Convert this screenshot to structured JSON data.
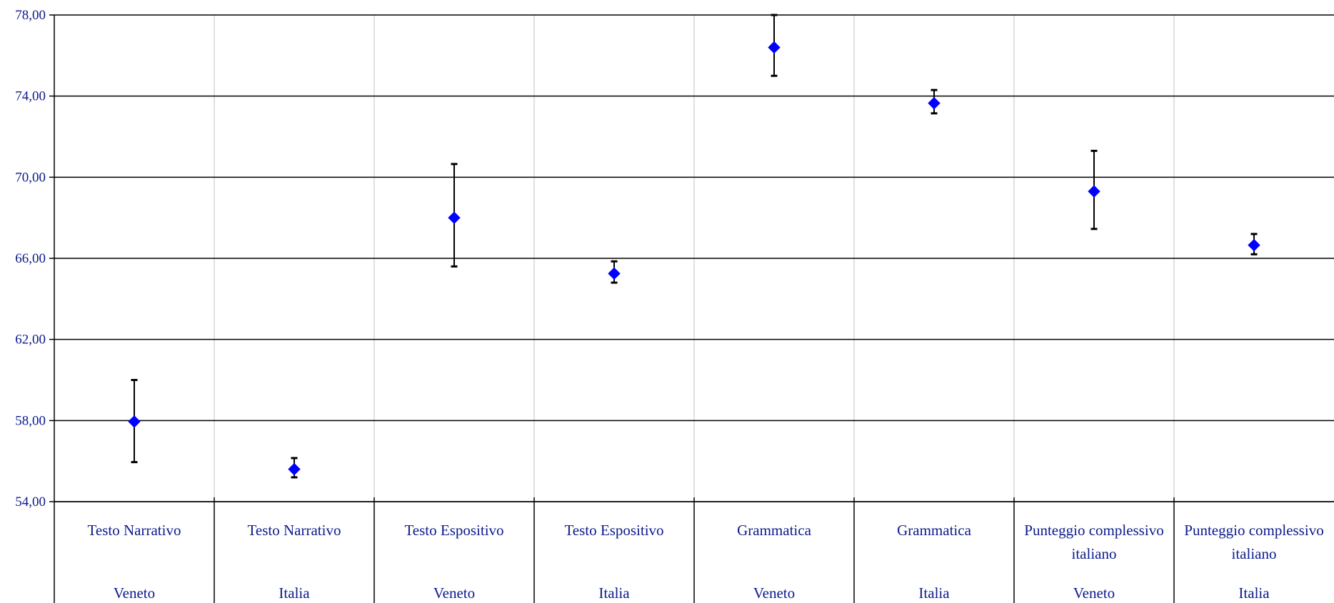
{
  "chart_data": {
    "type": "scatter",
    "title": "",
    "xlabel": "",
    "ylabel": "",
    "ylim": [
      54,
      78
    ],
    "yticks": [
      "54,00",
      "58,00",
      "62,00",
      "66,00",
      "70,00",
      "74,00",
      "78,00"
    ],
    "ytick_values": [
      54,
      58,
      62,
      66,
      70,
      74,
      78
    ],
    "grid": true,
    "legend": "none",
    "marker": "diamond",
    "marker_color": "#0000ff",
    "error_bar_color": "#000000",
    "categories": [
      {
        "label": "Testo Narrativo",
        "group": "Veneto"
      },
      {
        "label": "Testo Narrativo",
        "group": "Italia"
      },
      {
        "label": "Testo Espositivo",
        "group": "Veneto"
      },
      {
        "label": "Testo Espositivo",
        "group": "Italia"
      },
      {
        "label": "Grammatica",
        "group": "Veneto"
      },
      {
        "label": "Grammatica",
        "group": "Italia"
      },
      {
        "label": "Punteggio complessivo italiano",
        "group": "Veneto"
      },
      {
        "label": "Punteggio complessivo italiano",
        "group": "Italia"
      }
    ],
    "values": [
      57.95,
      55.6,
      68.0,
      65.25,
      76.4,
      73.65,
      69.3,
      66.65
    ],
    "error_low": [
      55.95,
      55.2,
      65.6,
      64.8,
      75.0,
      73.15,
      67.45,
      66.2
    ],
    "error_high": [
      60.0,
      56.15,
      70.65,
      65.85,
      78.0,
      74.3,
      71.3,
      67.2
    ]
  }
}
